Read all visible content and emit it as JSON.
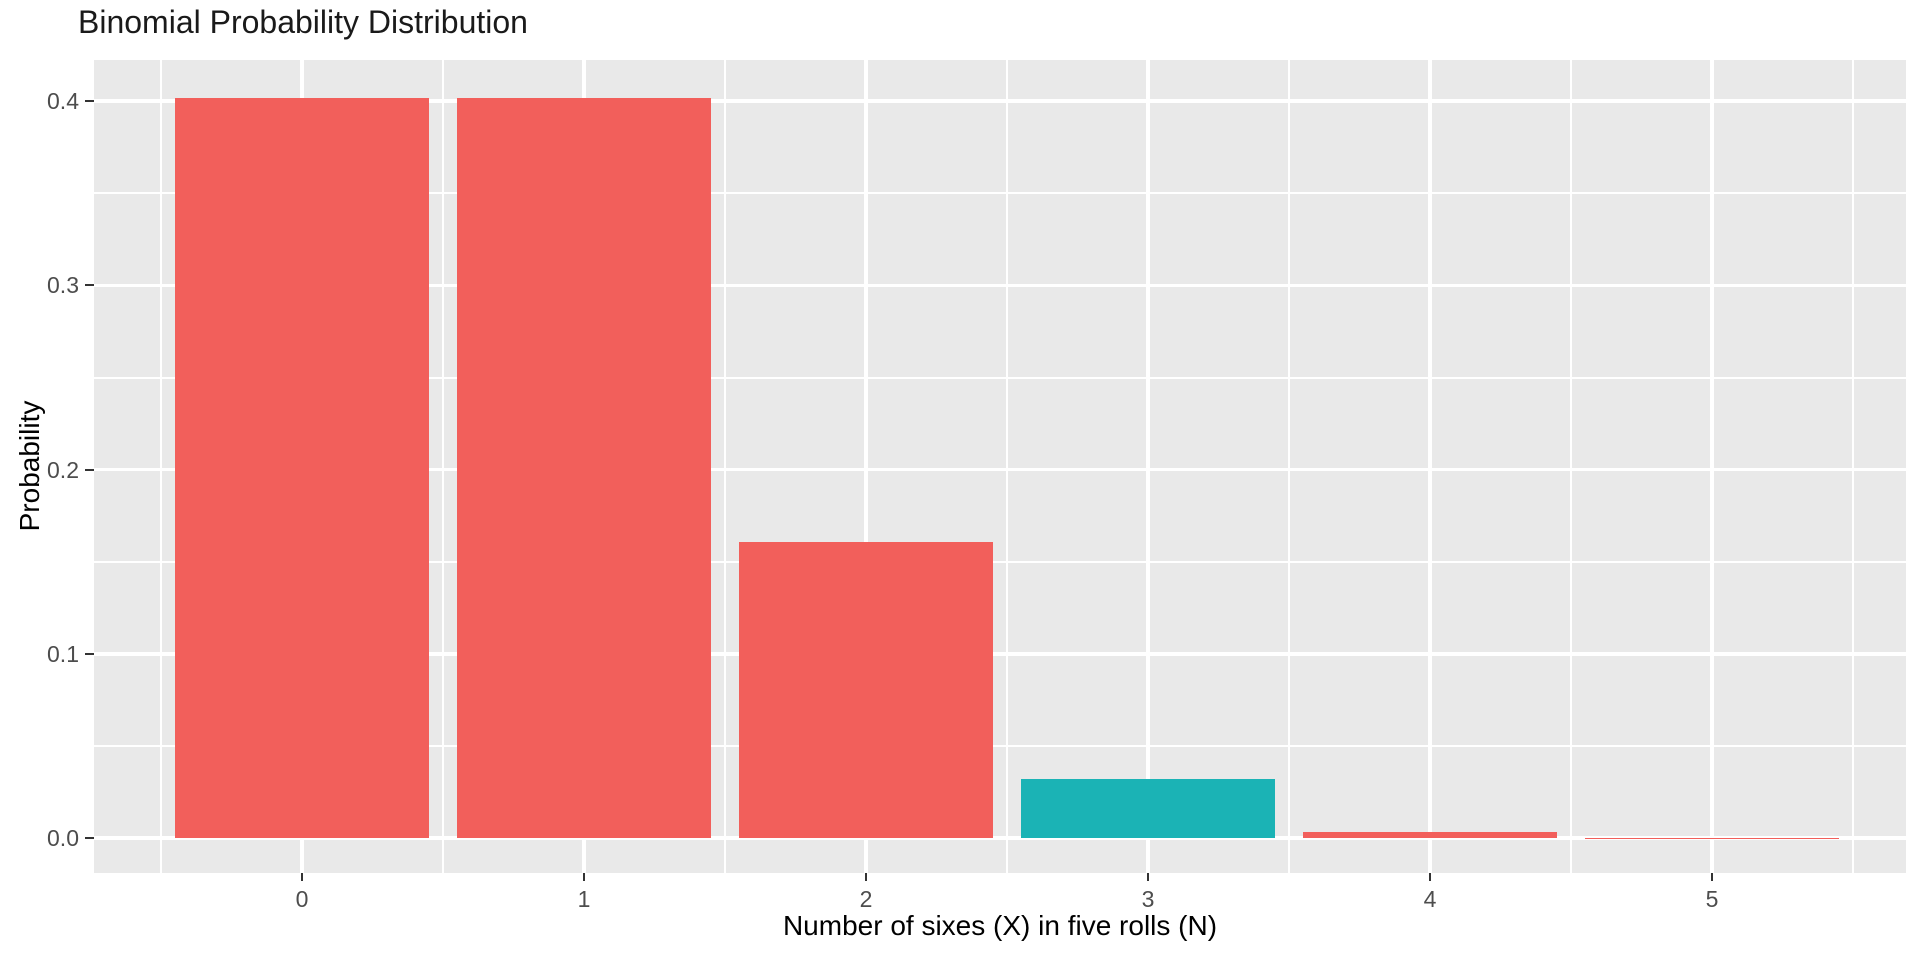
{
  "chart_data": {
    "type": "bar",
    "title": "Binomial Probability Distribution",
    "xlabel": "Number of sixes (X) in five rolls (N)",
    "ylabel": "Probability",
    "categories": [
      "0",
      "1",
      "2",
      "3",
      "4",
      "5"
    ],
    "values": [
      0.4019,
      0.4019,
      0.1608,
      0.0322,
      0.0032,
      0.0001
    ],
    "bar_colors": [
      "#F25F5B",
      "#F25F5B",
      "#F25F5B",
      "#1BB3B5",
      "#F25F5B",
      "#F25F5B"
    ],
    "highlighted_category": "3",
    "yticks": [
      0.0,
      0.1,
      0.2,
      0.3,
      0.4
    ],
    "ytick_labels": [
      "0.0",
      "0.1",
      "0.2",
      "0.3",
      "0.4"
    ],
    "ylim": [
      -0.02,
      0.422
    ],
    "grid": "on",
    "legend": "none",
    "colors": {
      "bar_default": "#F25F5B",
      "bar_highlight": "#1BB3B5",
      "panel_background": "#E9E9E9",
      "gridline": "#FFFFFF",
      "tick_mark": "#333333",
      "tick_label": "#4D4D4D",
      "title_text": "#1a1a1a"
    }
  }
}
